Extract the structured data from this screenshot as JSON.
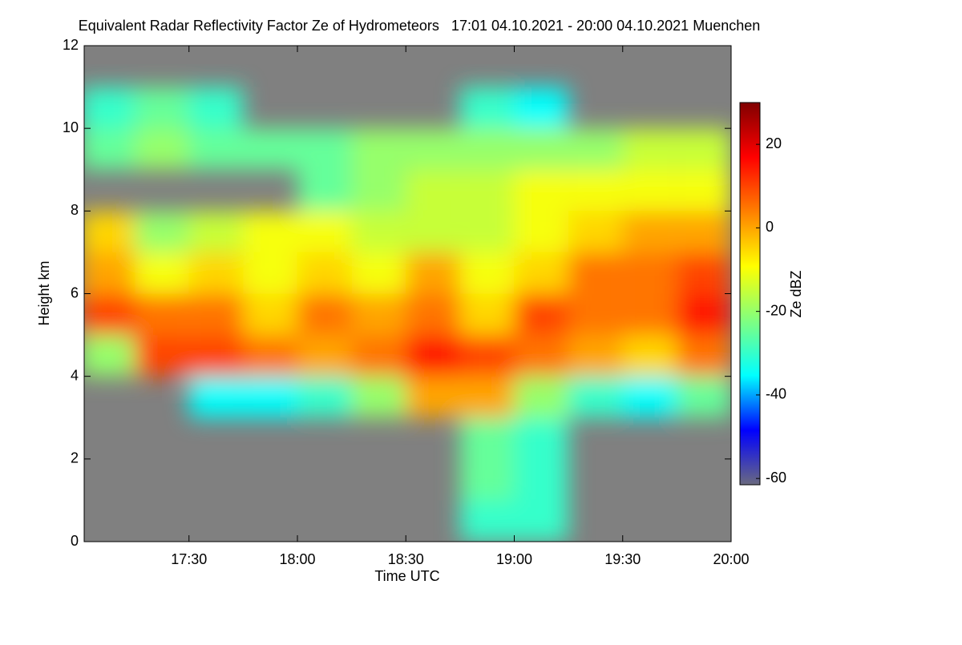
{
  "chart_data": {
    "type": "heatmap",
    "title": "Equivalent Radar Reflectivity Factor Ze of Hydrometeors   17:01 04.10.2021 - 20:00 04.10.2021 Muenchen",
    "x_label": "Time UTC",
    "y_label": "Height km",
    "colorbar_label": "Ze dBZ",
    "xlim": [
      17.0167,
      20
    ],
    "xticks": [
      {
        "value": 17.5,
        "label": "17:30"
      },
      {
        "value": 18,
        "label": "18:00"
      },
      {
        "value": 18.5,
        "label": "18:30"
      },
      {
        "value": 19,
        "label": "19:00"
      },
      {
        "value": 19.5,
        "label": "19:30"
      },
      {
        "value": 20,
        "label": "20:00"
      }
    ],
    "ylim": [
      0,
      12
    ],
    "yticks": [
      0,
      2,
      4,
      6,
      8,
      10,
      12
    ],
    "clim": [
      -61.5,
      30
    ],
    "cticks": [
      -60,
      -40,
      -20,
      0,
      20
    ],
    "colormap": [
      "#6a6a80",
      "#0000ff",
      "#00ffff",
      "#80ff80",
      "#ffff00",
      "#ff8000",
      "#ff0000",
      "#800000"
    ],
    "background": "#808080",
    "x": [
      17.125,
      17.375,
      17.625,
      17.875,
      18.125,
      18.375,
      18.625,
      18.875,
      19.125,
      19.375,
      19.625,
      19.875
    ],
    "y": [
      0.5,
      1.5,
      2.5,
      3.5,
      4.5,
      5.5,
      6.5,
      7.5,
      8.5,
      9.5,
      10.5,
      11.5
    ],
    "z": [
      [
        null,
        null,
        null,
        null,
        null,
        null,
        null,
        -30,
        -30,
        null,
        null,
        null
      ],
      [
        null,
        null,
        null,
        null,
        null,
        null,
        null,
        -25,
        -30,
        null,
        null,
        null
      ],
      [
        null,
        null,
        null,
        null,
        null,
        null,
        null,
        -25,
        -30,
        null,
        null,
        null
      ],
      [
        null,
        null,
        -35,
        -35,
        -30,
        -20,
        0,
        0,
        -20,
        -30,
        -35,
        -25
      ],
      [
        -20,
        10,
        10,
        5,
        0,
        5,
        15,
        10,
        5,
        0,
        -5,
        5
      ],
      [
        10,
        5,
        5,
        -5,
        5,
        0,
        5,
        -5,
        10,
        5,
        5,
        15
      ],
      [
        0,
        -10,
        -5,
        -10,
        -5,
        -10,
        0,
        -10,
        -5,
        5,
        5,
        10
      ],
      [
        -5,
        -20,
        -15,
        -10,
        -10,
        -15,
        -15,
        -15,
        -10,
        -5,
        0,
        0
      ],
      [
        null,
        null,
        null,
        null,
        -25,
        -20,
        -15,
        -15,
        -10,
        -10,
        -10,
        -10
      ],
      [
        -25,
        -20,
        -25,
        -25,
        -25,
        -20,
        -20,
        -20,
        -20,
        -20,
        -15,
        -15
      ],
      [
        -30,
        -25,
        -30,
        null,
        null,
        null,
        null,
        -30,
        -35,
        null,
        null,
        null
      ],
      [
        null,
        null,
        null,
        null,
        null,
        null,
        null,
        null,
        null,
        null,
        null,
        null
      ]
    ]
  }
}
